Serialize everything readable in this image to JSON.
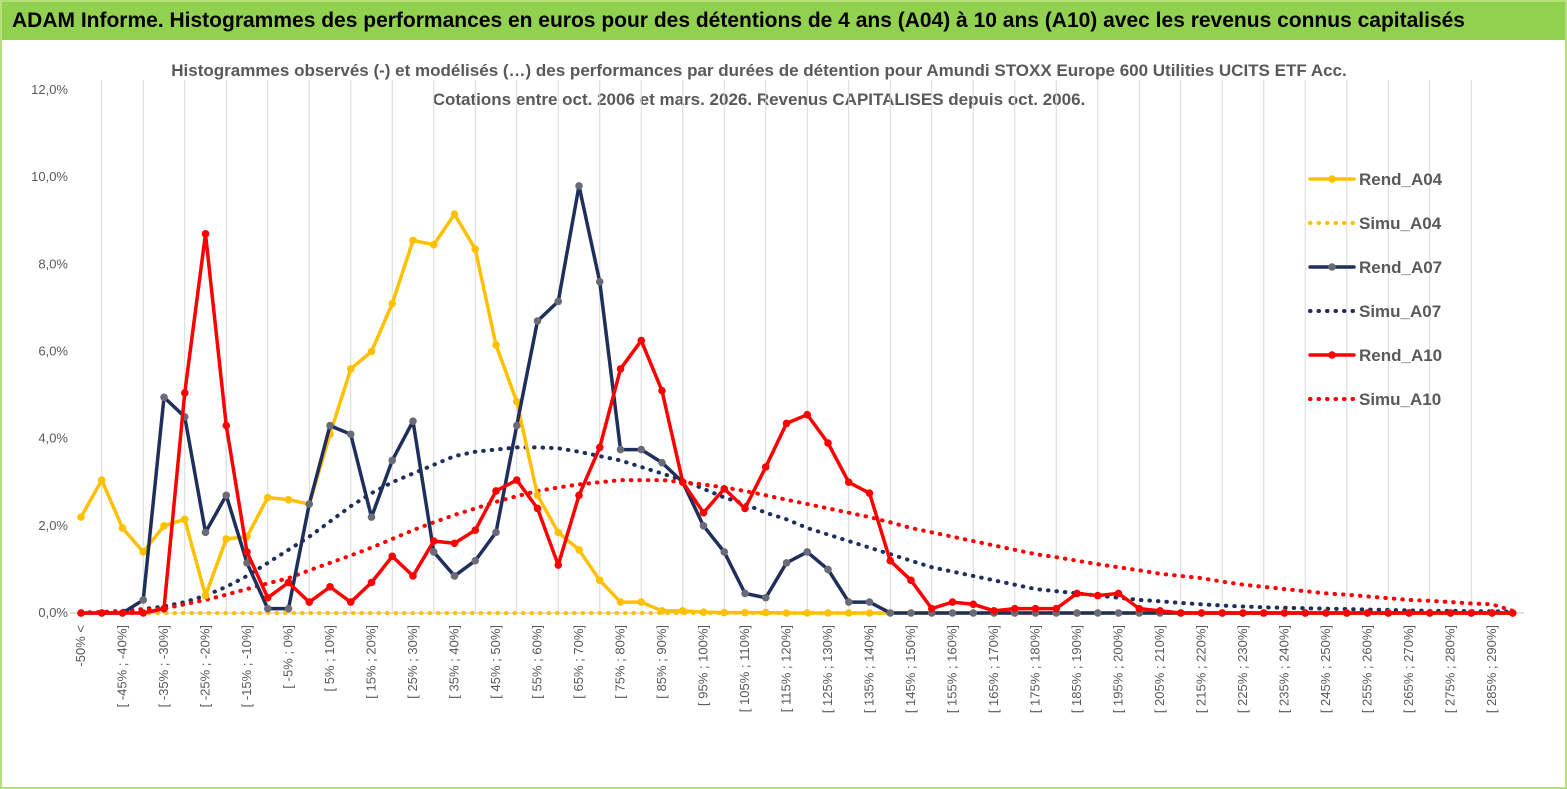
{
  "header": {
    "title": "ADAM Informe. Histogrammes des performances en euros pour des détentions de 4 ans (A04) à 10 ans (A10) avec les revenus connus capitalisés"
  },
  "chart_data": {
    "type": "line",
    "title": "Histogrammes observés (-) et modélisés (…) des performances par durées de détention pour Amundi STOXX Europe 600 Utilities UCITS ETF Acc.",
    "subtitle": "Cotations entre oct. 2006 et mars. 2026. Revenus CAPITALISES depuis oct. 2006.",
    "categories": [
      "-50% <",
      null,
      "[ -45% ; -40%]",
      null,
      "[ -35% ; -30%]",
      null,
      "[ -25% ; -20%]",
      null,
      "[ -15% ; -10%]",
      null,
      "[ -5% ; 0%]",
      null,
      "[ 5% ; 10%]",
      null,
      "[ 15% ; 20%]",
      null,
      "[ 25% ; 30%]",
      null,
      "[ 35% ; 40%]",
      null,
      "[ 45% ; 50%]",
      null,
      "[ 55% ; 60%]",
      null,
      "[ 65% ; 70%]",
      null,
      "[ 75% ; 80%]",
      null,
      "[ 85% ; 90%]",
      null,
      "[ 95% ; 100%]",
      null,
      "[ 105% ; 110%]",
      null,
      "[ 115% ; 120%]",
      null,
      "[ 125% ; 130%]",
      null,
      "[ 135% ; 140%]",
      null,
      "[ 145% ; 150%]",
      null,
      "[ 155% ; 160%]",
      null,
      "[ 165% ; 170%]",
      null,
      "[ 175% ; 180%]",
      null,
      "[ 185% ; 190%]",
      null,
      "[ 195% ; 200%]",
      null,
      "[ 205% ; 210%]",
      null,
      "[ 215% ; 220%]",
      null,
      "[ 225% ; 230%]",
      null,
      "[ 235% ; 240%]",
      null,
      "[ 245% ; 250%]",
      null,
      "[ 255% ; 260%]",
      null,
      "[ 265% ; 270%]",
      null,
      "[ 275% ; 280%]",
      null,
      "[ 285% ; 290%]",
      null
    ],
    "series": [
      {
        "name": "Rend_A04",
        "color": "#ffc000",
        "style": "solid",
        "values": [
          2.2,
          3.05,
          1.95,
          1.4,
          2.0,
          2.15,
          0.4,
          1.7,
          1.75,
          2.65,
          2.6,
          2.5,
          4.1,
          5.6,
          6.0,
          7.1,
          8.55,
          8.45,
          9.15,
          8.35,
          6.15,
          4.85,
          2.7,
          1.85,
          1.45,
          0.75,
          0.25,
          0.25,
          0.05,
          0.05,
          0.02,
          0.01,
          0.01,
          0.01,
          0,
          0,
          0,
          0,
          0,
          0,
          0,
          0,
          0,
          0,
          0,
          0,
          0,
          0,
          0,
          0,
          0,
          0,
          0,
          0,
          0,
          0,
          0,
          0,
          0,
          0,
          0,
          0,
          0,
          0,
          0,
          0,
          0,
          0,
          0,
          0
        ]
      },
      {
        "name": "Simu_A04",
        "color": "#ffc000",
        "style": "dotted",
        "values": [
          0,
          0,
          0,
          0,
          0,
          0,
          0,
          0,
          0,
          0,
          0,
          0,
          0,
          0,
          0,
          0,
          0,
          0,
          0,
          0,
          0,
          0,
          0,
          0,
          0,
          0,
          0,
          0,
          0,
          0,
          0,
          0,
          0,
          0,
          0,
          0,
          0,
          0,
          0,
          0,
          0,
          0,
          0,
          0,
          0,
          0,
          0,
          0,
          0,
          0,
          0,
          0,
          0,
          0,
          0,
          0,
          0,
          0,
          0,
          0,
          0,
          0,
          0,
          0,
          0,
          0,
          0,
          0,
          0,
          0
        ]
      },
      {
        "name": "Rend_A07",
        "color": "#1f2f5c",
        "marker": "#6b6b78",
        "style": "solid",
        "values": [
          0,
          0,
          0,
          0.3,
          4.95,
          4.5,
          1.85,
          2.7,
          1.15,
          0.1,
          0.1,
          2.5,
          4.3,
          4.1,
          2.2,
          3.5,
          4.4,
          1.4,
          0.85,
          1.2,
          1.85,
          4.3,
          6.7,
          7.15,
          9.8,
          7.6,
          3.75,
          3.75,
          3.45,
          3.0,
          2.0,
          1.4,
          0.45,
          0.35,
          1.15,
          1.4,
          1.0,
          0.25,
          0.25,
          0,
          0,
          0,
          0,
          0,
          0,
          0,
          0,
          0,
          0,
          0,
          0,
          0,
          0,
          0,
          0,
          0,
          0,
          0,
          0,
          0,
          0,
          0,
          0,
          0,
          0,
          0,
          0,
          0,
          0,
          0
        ]
      },
      {
        "name": "Simu_A07",
        "color": "#1f2f5c",
        "style": "dotted",
        "values": [
          0.01,
          0.02,
          0.05,
          0.09,
          0.15,
          0.25,
          0.4,
          0.6,
          0.85,
          1.15,
          1.45,
          1.75,
          2.1,
          2.45,
          2.75,
          3.0,
          3.2,
          3.4,
          3.6,
          3.7,
          3.75,
          3.8,
          3.8,
          3.78,
          3.7,
          3.6,
          3.5,
          3.35,
          3.2,
          3.05,
          2.85,
          2.65,
          2.5,
          2.3,
          2.15,
          1.95,
          1.8,
          1.65,
          1.5,
          1.35,
          1.2,
          1.05,
          0.95,
          0.85,
          0.75,
          0.65,
          0.55,
          0.5,
          0.45,
          0.4,
          0.35,
          0.3,
          0.27,
          0.23,
          0.2,
          0.17,
          0.15,
          0.13,
          0.12,
          0.11,
          0.1,
          0.09,
          0.08,
          0.07,
          0.06,
          0.05,
          0.05,
          0.04,
          0.04,
          0.03
        ]
      },
      {
        "name": "Rend_A10",
        "color": "#ff0000",
        "style": "solid",
        "values": [
          0,
          0,
          0,
          0,
          0.1,
          5.05,
          8.7,
          4.3,
          1.4,
          0.35,
          0.7,
          0.25,
          0.6,
          0.25,
          0.7,
          1.3,
          0.85,
          1.65,
          1.6,
          1.9,
          2.8,
          3.05,
          2.4,
          1.1,
          2.7,
          3.8,
          5.6,
          6.25,
          5.1,
          3.0,
          2.3,
          2.85,
          2.4,
          3.35,
          4.35,
          4.55,
          3.9,
          3.0,
          2.75,
          1.2,
          0.75,
          0.1,
          0.25,
          0.2,
          0.05,
          0.1,
          0.1,
          0.1,
          0.45,
          0.4,
          0.45,
          0.1,
          0.05,
          0,
          0,
          0,
          0,
          0,
          0,
          0,
          0,
          0,
          0,
          0,
          0,
          0,
          0,
          0,
          0,
          0
        ]
      },
      {
        "name": "Simu_A10",
        "color": "#ff0000",
        "style": "dotted",
        "values": [
          0.01,
          0.02,
          0.04,
          0.07,
          0.1,
          0.2,
          0.3,
          0.42,
          0.55,
          0.68,
          0.8,
          0.98,
          1.15,
          1.32,
          1.5,
          1.7,
          1.9,
          2.08,
          2.25,
          2.4,
          2.55,
          2.68,
          2.8,
          2.88,
          2.95,
          3.0,
          3.05,
          3.05,
          3.05,
          3.0,
          2.95,
          2.88,
          2.8,
          2.7,
          2.6,
          2.5,
          2.4,
          2.3,
          2.2,
          2.08,
          1.95,
          1.85,
          1.75,
          1.65,
          1.55,
          1.45,
          1.35,
          1.28,
          1.2,
          1.12,
          1.05,
          0.98,
          0.9,
          0.85,
          0.8,
          0.72,
          0.65,
          0.6,
          0.55,
          0.5,
          0.45,
          0.42,
          0.38,
          0.34,
          0.3,
          0.28,
          0.25,
          0.22,
          0.2,
          0.05
        ]
      }
    ],
    "ylim": [
      0,
      12
    ],
    "yticks": [
      {
        "value": 0,
        "label": "0,0%"
      },
      {
        "value": 2,
        "label": "2,0%"
      },
      {
        "value": 4,
        "label": "4,0%"
      },
      {
        "value": 6,
        "label": "6,0%"
      },
      {
        "value": 8,
        "label": "8,0%"
      },
      {
        "value": 10,
        "label": "10,0%"
      },
      {
        "value": 12,
        "label": "12,0%"
      }
    ],
    "xgrid": true,
    "legend": "right"
  }
}
